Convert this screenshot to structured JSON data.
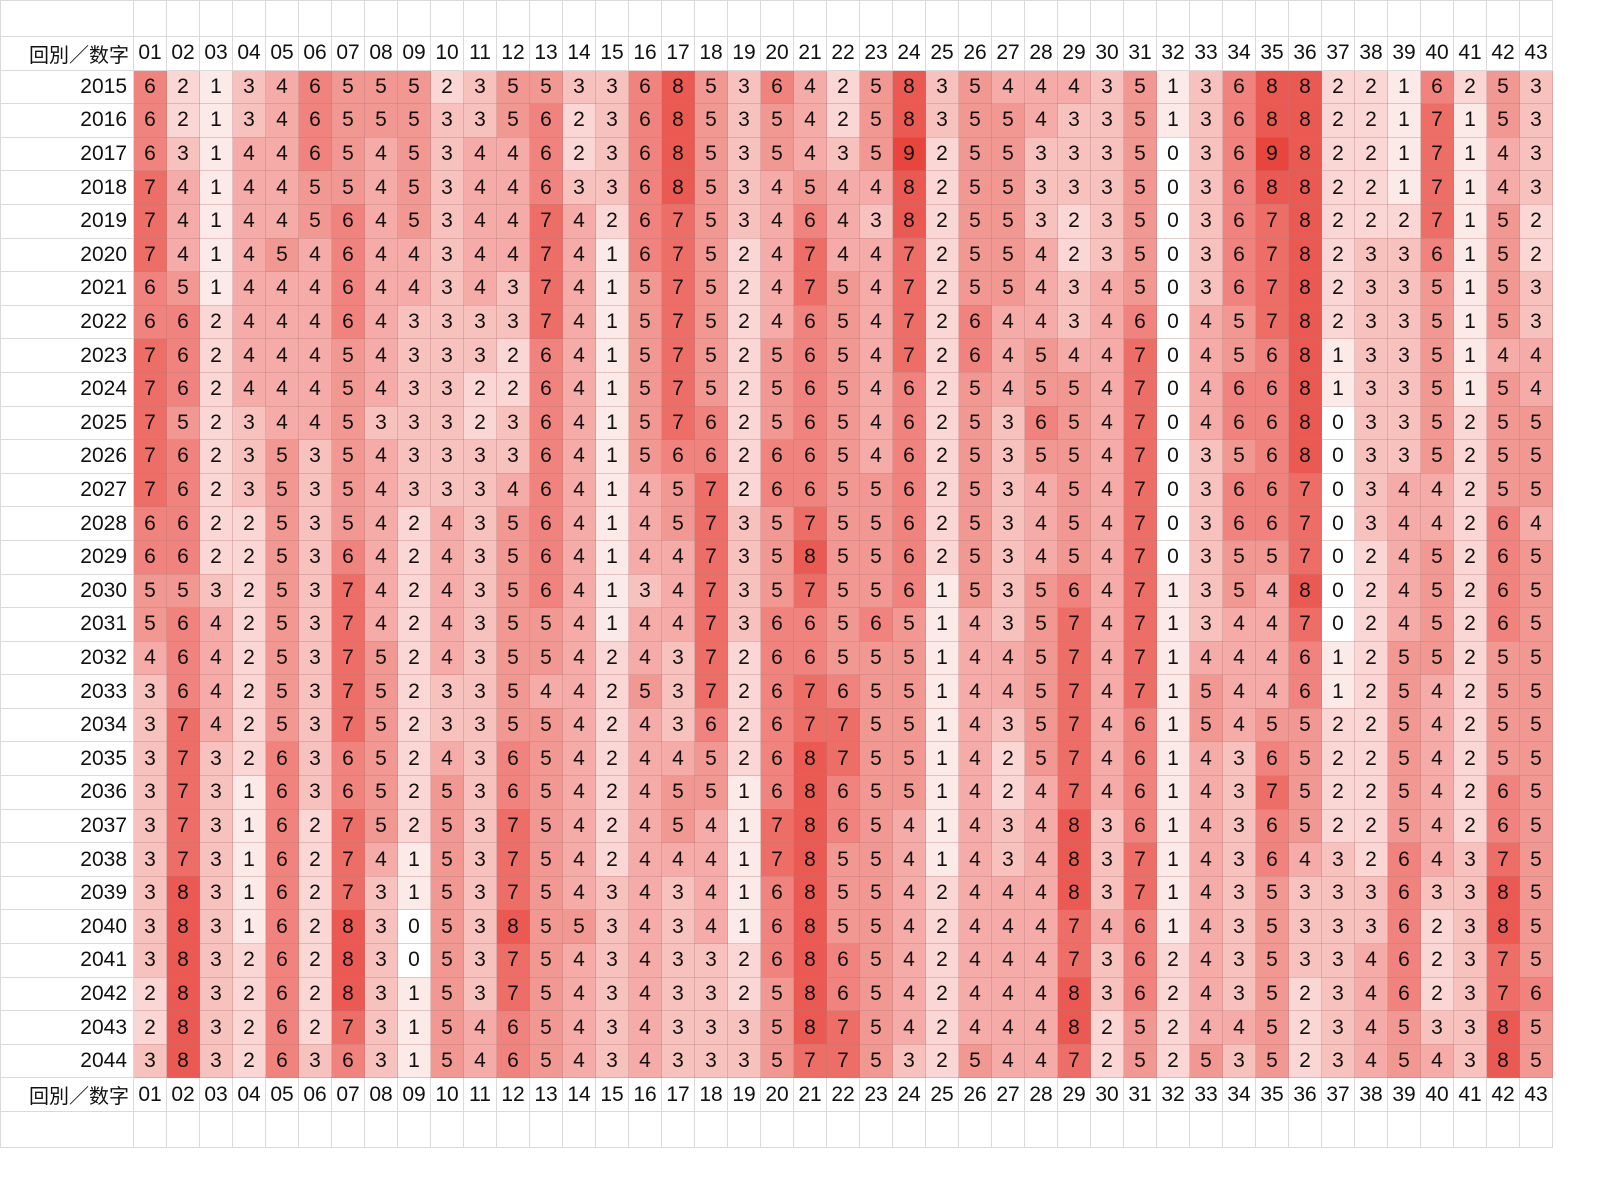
{
  "chart_data": {
    "type": "heatmap",
    "corner_label": "回別／数字",
    "columns": [
      "01",
      "02",
      "03",
      "04",
      "05",
      "06",
      "07",
      "08",
      "09",
      "10",
      "11",
      "12",
      "13",
      "14",
      "15",
      "16",
      "17",
      "18",
      "19",
      "20",
      "21",
      "22",
      "23",
      "24",
      "25",
      "26",
      "27",
      "28",
      "29",
      "30",
      "31",
      "32",
      "33",
      "34",
      "35",
      "36",
      "37",
      "38",
      "39",
      "40",
      "41",
      "42",
      "43"
    ],
    "rows": [
      "2015",
      "2016",
      "2017",
      "2018",
      "2019",
      "2020",
      "2021",
      "2022",
      "2023",
      "2024",
      "2025",
      "2026",
      "2027",
      "2028",
      "2029",
      "2030",
      "2031",
      "2032",
      "2033",
      "2034",
      "2035",
      "2036",
      "2037",
      "2038",
      "2039",
      "2040",
      "2041",
      "2042",
      "2043",
      "2044"
    ],
    "values": [
      [
        6,
        2,
        1,
        3,
        4,
        6,
        5,
        5,
        5,
        2,
        3,
        5,
        5,
        3,
        3,
        6,
        8,
        5,
        3,
        6,
        4,
        2,
        5,
        8,
        3,
        5,
        4,
        4,
        4,
        3,
        5,
        1,
        3,
        6,
        8,
        8,
        2,
        2,
        1,
        6,
        2,
        5,
        3
      ],
      [
        6,
        2,
        1,
        3,
        4,
        6,
        5,
        5,
        5,
        3,
        3,
        5,
        6,
        2,
        3,
        6,
        8,
        5,
        3,
        5,
        4,
        2,
        5,
        8,
        3,
        5,
        5,
        4,
        3,
        3,
        5,
        1,
        3,
        6,
        8,
        8,
        2,
        2,
        1,
        7,
        1,
        5,
        3
      ],
      [
        6,
        3,
        1,
        4,
        4,
        6,
        5,
        4,
        5,
        3,
        4,
        4,
        6,
        2,
        3,
        6,
        8,
        5,
        3,
        5,
        4,
        3,
        5,
        9,
        2,
        5,
        5,
        3,
        3,
        3,
        5,
        0,
        3,
        6,
        9,
        8,
        2,
        2,
        1,
        7,
        1,
        4,
        3
      ],
      [
        7,
        4,
        1,
        4,
        4,
        5,
        5,
        4,
        5,
        3,
        4,
        4,
        6,
        3,
        3,
        6,
        8,
        5,
        3,
        4,
        5,
        4,
        4,
        8,
        2,
        5,
        5,
        3,
        3,
        3,
        5,
        0,
        3,
        6,
        8,
        8,
        2,
        2,
        1,
        7,
        1,
        4,
        3
      ],
      [
        7,
        4,
        1,
        4,
        4,
        5,
        6,
        4,
        5,
        3,
        4,
        4,
        7,
        4,
        2,
        6,
        7,
        5,
        3,
        4,
        6,
        4,
        3,
        8,
        2,
        5,
        5,
        3,
        2,
        3,
        5,
        0,
        3,
        6,
        7,
        8,
        2,
        2,
        2,
        7,
        1,
        5,
        2
      ],
      [
        7,
        4,
        1,
        4,
        5,
        4,
        6,
        4,
        4,
        3,
        4,
        4,
        7,
        4,
        1,
        6,
        7,
        5,
        2,
        4,
        7,
        4,
        4,
        7,
        2,
        5,
        5,
        4,
        2,
        3,
        5,
        0,
        3,
        6,
        7,
        8,
        2,
        3,
        3,
        6,
        1,
        5,
        2
      ],
      [
        6,
        5,
        1,
        4,
        4,
        4,
        6,
        4,
        4,
        3,
        4,
        3,
        7,
        4,
        1,
        5,
        7,
        5,
        2,
        4,
        7,
        5,
        4,
        7,
        2,
        5,
        5,
        4,
        3,
        4,
        5,
        0,
        3,
        6,
        7,
        8,
        2,
        3,
        3,
        5,
        1,
        5,
        3
      ],
      [
        6,
        6,
        2,
        4,
        4,
        4,
        6,
        4,
        3,
        3,
        3,
        3,
        7,
        4,
        1,
        5,
        7,
        5,
        2,
        4,
        6,
        5,
        4,
        7,
        2,
        6,
        4,
        4,
        3,
        4,
        6,
        0,
        4,
        5,
        7,
        8,
        2,
        3,
        3,
        5,
        1,
        5,
        3
      ],
      [
        7,
        6,
        2,
        4,
        4,
        4,
        5,
        4,
        3,
        3,
        3,
        2,
        6,
        4,
        1,
        5,
        7,
        5,
        2,
        5,
        6,
        5,
        4,
        7,
        2,
        6,
        4,
        5,
        4,
        4,
        7,
        0,
        4,
        5,
        6,
        8,
        1,
        3,
        3,
        5,
        1,
        4,
        4
      ],
      [
        7,
        6,
        2,
        4,
        4,
        4,
        5,
        4,
        3,
        3,
        2,
        2,
        6,
        4,
        1,
        5,
        7,
        5,
        2,
        5,
        6,
        5,
        4,
        6,
        2,
        5,
        4,
        5,
        5,
        4,
        7,
        0,
        4,
        6,
        6,
        8,
        1,
        3,
        3,
        5,
        1,
        5,
        4
      ],
      [
        7,
        5,
        2,
        3,
        4,
        4,
        5,
        3,
        3,
        3,
        2,
        3,
        6,
        4,
        1,
        5,
        7,
        6,
        2,
        5,
        6,
        5,
        4,
        6,
        2,
        5,
        3,
        6,
        5,
        4,
        7,
        0,
        4,
        6,
        6,
        8,
        0,
        3,
        3,
        5,
        2,
        5,
        5
      ],
      [
        7,
        6,
        2,
        3,
        5,
        3,
        5,
        4,
        3,
        3,
        3,
        3,
        6,
        4,
        1,
        5,
        6,
        6,
        2,
        6,
        6,
        5,
        4,
        6,
        2,
        5,
        3,
        5,
        5,
        4,
        7,
        0,
        3,
        5,
        6,
        8,
        0,
        3,
        3,
        5,
        2,
        5,
        5
      ],
      [
        7,
        6,
        2,
        3,
        5,
        3,
        5,
        4,
        3,
        3,
        3,
        4,
        6,
        4,
        1,
        4,
        5,
        7,
        2,
        6,
        6,
        5,
        5,
        6,
        2,
        5,
        3,
        4,
        5,
        4,
        7,
        0,
        3,
        6,
        6,
        7,
        0,
        3,
        4,
        4,
        2,
        5,
        5
      ],
      [
        6,
        6,
        2,
        2,
        5,
        3,
        5,
        4,
        2,
        4,
        3,
        5,
        6,
        4,
        1,
        4,
        5,
        7,
        3,
        5,
        7,
        5,
        5,
        6,
        2,
        5,
        3,
        4,
        5,
        4,
        7,
        0,
        3,
        6,
        6,
        7,
        0,
        3,
        4,
        4,
        2,
        6,
        4
      ],
      [
        6,
        6,
        2,
        2,
        5,
        3,
        6,
        4,
        2,
        4,
        3,
        5,
        6,
        4,
        1,
        4,
        4,
        7,
        3,
        5,
        8,
        5,
        5,
        6,
        2,
        5,
        3,
        4,
        5,
        4,
        7,
        0,
        3,
        5,
        5,
        7,
        0,
        2,
        4,
        5,
        2,
        6,
        5
      ],
      [
        5,
        5,
        3,
        2,
        5,
        3,
        7,
        4,
        2,
        4,
        3,
        5,
        6,
        4,
        1,
        3,
        4,
        7,
        3,
        5,
        7,
        5,
        5,
        6,
        1,
        5,
        3,
        5,
        6,
        4,
        7,
        1,
        3,
        5,
        4,
        8,
        0,
        2,
        4,
        5,
        2,
        6,
        5
      ],
      [
        5,
        6,
        4,
        2,
        5,
        3,
        7,
        4,
        2,
        4,
        3,
        5,
        5,
        4,
        1,
        4,
        4,
        7,
        3,
        6,
        6,
        5,
        6,
        5,
        1,
        4,
        3,
        5,
        7,
        4,
        7,
        1,
        3,
        4,
        4,
        7,
        0,
        2,
        4,
        5,
        2,
        6,
        5
      ],
      [
        4,
        6,
        4,
        2,
        5,
        3,
        7,
        5,
        2,
        4,
        3,
        5,
        5,
        4,
        2,
        4,
        3,
        7,
        2,
        6,
        6,
        5,
        5,
        5,
        1,
        4,
        4,
        5,
        7,
        4,
        7,
        1,
        4,
        4,
        4,
        6,
        1,
        2,
        5,
        5,
        2,
        5,
        5
      ],
      [
        3,
        6,
        4,
        2,
        5,
        3,
        7,
        5,
        2,
        3,
        3,
        5,
        4,
        4,
        2,
        5,
        3,
        7,
        2,
        6,
        7,
        6,
        5,
        5,
        1,
        4,
        4,
        5,
        7,
        4,
        7,
        1,
        5,
        4,
        4,
        6,
        1,
        2,
        5,
        4,
        2,
        5,
        5
      ],
      [
        3,
        7,
        4,
        2,
        5,
        3,
        7,
        5,
        2,
        3,
        3,
        5,
        5,
        4,
        2,
        4,
        3,
        6,
        2,
        6,
        7,
        7,
        5,
        5,
        1,
        4,
        3,
        5,
        7,
        4,
        6,
        1,
        5,
        4,
        5,
        5,
        2,
        2,
        5,
        4,
        2,
        5,
        5
      ],
      [
        3,
        7,
        3,
        2,
        6,
        3,
        6,
        5,
        2,
        4,
        3,
        6,
        5,
        4,
        2,
        4,
        4,
        5,
        2,
        6,
        8,
        7,
        5,
        5,
        1,
        4,
        2,
        5,
        7,
        4,
        6,
        1,
        4,
        3,
        6,
        5,
        2,
        2,
        5,
        4,
        2,
        5,
        5
      ],
      [
        3,
        7,
        3,
        1,
        6,
        3,
        6,
        5,
        2,
        5,
        3,
        6,
        5,
        4,
        2,
        4,
        5,
        5,
        1,
        6,
        8,
        6,
        5,
        5,
        1,
        4,
        2,
        4,
        7,
        4,
        6,
        1,
        4,
        3,
        7,
        5,
        2,
        2,
        5,
        4,
        2,
        6,
        5
      ],
      [
        3,
        7,
        3,
        1,
        6,
        2,
        7,
        5,
        2,
        5,
        3,
        7,
        5,
        4,
        2,
        4,
        5,
        4,
        1,
        7,
        8,
        6,
        5,
        4,
        1,
        4,
        3,
        4,
        8,
        3,
        6,
        1,
        4,
        3,
        6,
        5,
        2,
        2,
        5,
        4,
        2,
        6,
        5
      ],
      [
        3,
        7,
        3,
        1,
        6,
        2,
        7,
        4,
        1,
        5,
        3,
        7,
        5,
        4,
        2,
        4,
        4,
        4,
        1,
        7,
        8,
        5,
        5,
        4,
        1,
        4,
        3,
        4,
        8,
        3,
        7,
        1,
        4,
        3,
        6,
        4,
        3,
        2,
        6,
        4,
        3,
        7,
        5
      ],
      [
        3,
        8,
        3,
        1,
        6,
        2,
        7,
        3,
        1,
        5,
        3,
        7,
        5,
        4,
        3,
        4,
        3,
        4,
        1,
        6,
        8,
        5,
        5,
        4,
        2,
        4,
        4,
        4,
        8,
        3,
        7,
        1,
        4,
        3,
        5,
        3,
        3,
        3,
        6,
        3,
        3,
        8,
        5
      ],
      [
        3,
        8,
        3,
        1,
        6,
        2,
        8,
        3,
        0,
        5,
        3,
        8,
        5,
        5,
        3,
        4,
        3,
        4,
        1,
        6,
        8,
        5,
        5,
        4,
        2,
        4,
        4,
        4,
        7,
        4,
        6,
        1,
        4,
        3,
        5,
        3,
        3,
        3,
        6,
        2,
        3,
        8,
        5
      ],
      [
        3,
        8,
        3,
        2,
        6,
        2,
        8,
        3,
        0,
        5,
        3,
        7,
        5,
        4,
        3,
        4,
        3,
        3,
        2,
        6,
        8,
        6,
        5,
        4,
        2,
        4,
        4,
        4,
        7,
        3,
        6,
        2,
        4,
        3,
        5,
        3,
        3,
        4,
        6,
        2,
        3,
        7,
        5
      ],
      [
        2,
        8,
        3,
        2,
        6,
        2,
        8,
        3,
        1,
        5,
        3,
        7,
        5,
        4,
        3,
        4,
        3,
        3,
        2,
        5,
        8,
        6,
        5,
        4,
        2,
        4,
        4,
        4,
        8,
        3,
        6,
        2,
        4,
        3,
        5,
        2,
        3,
        4,
        6,
        2,
        3,
        7,
        6
      ],
      [
        2,
        8,
        3,
        2,
        6,
        2,
        7,
        3,
        1,
        5,
        4,
        6,
        5,
        4,
        3,
        4,
        3,
        3,
        3,
        5,
        8,
        7,
        5,
        4,
        2,
        4,
        4,
        4,
        8,
        2,
        5,
        2,
        4,
        4,
        5,
        2,
        3,
        4,
        5,
        3,
        3,
        8,
        5
      ],
      [
        3,
        8,
        3,
        2,
        6,
        3,
        6,
        3,
        1,
        5,
        4,
        6,
        5,
        4,
        3,
        4,
        3,
        3,
        3,
        5,
        7,
        7,
        5,
        3,
        2,
        5,
        4,
        4,
        7,
        2,
        5,
        2,
        5,
        3,
        5,
        2,
        3,
        4,
        5,
        4,
        3,
        8,
        5
      ]
    ],
    "color_scale": {
      "min": 0,
      "max": 9,
      "min_color": "#ffffff",
      "max_color": "#e8453c"
    }
  }
}
